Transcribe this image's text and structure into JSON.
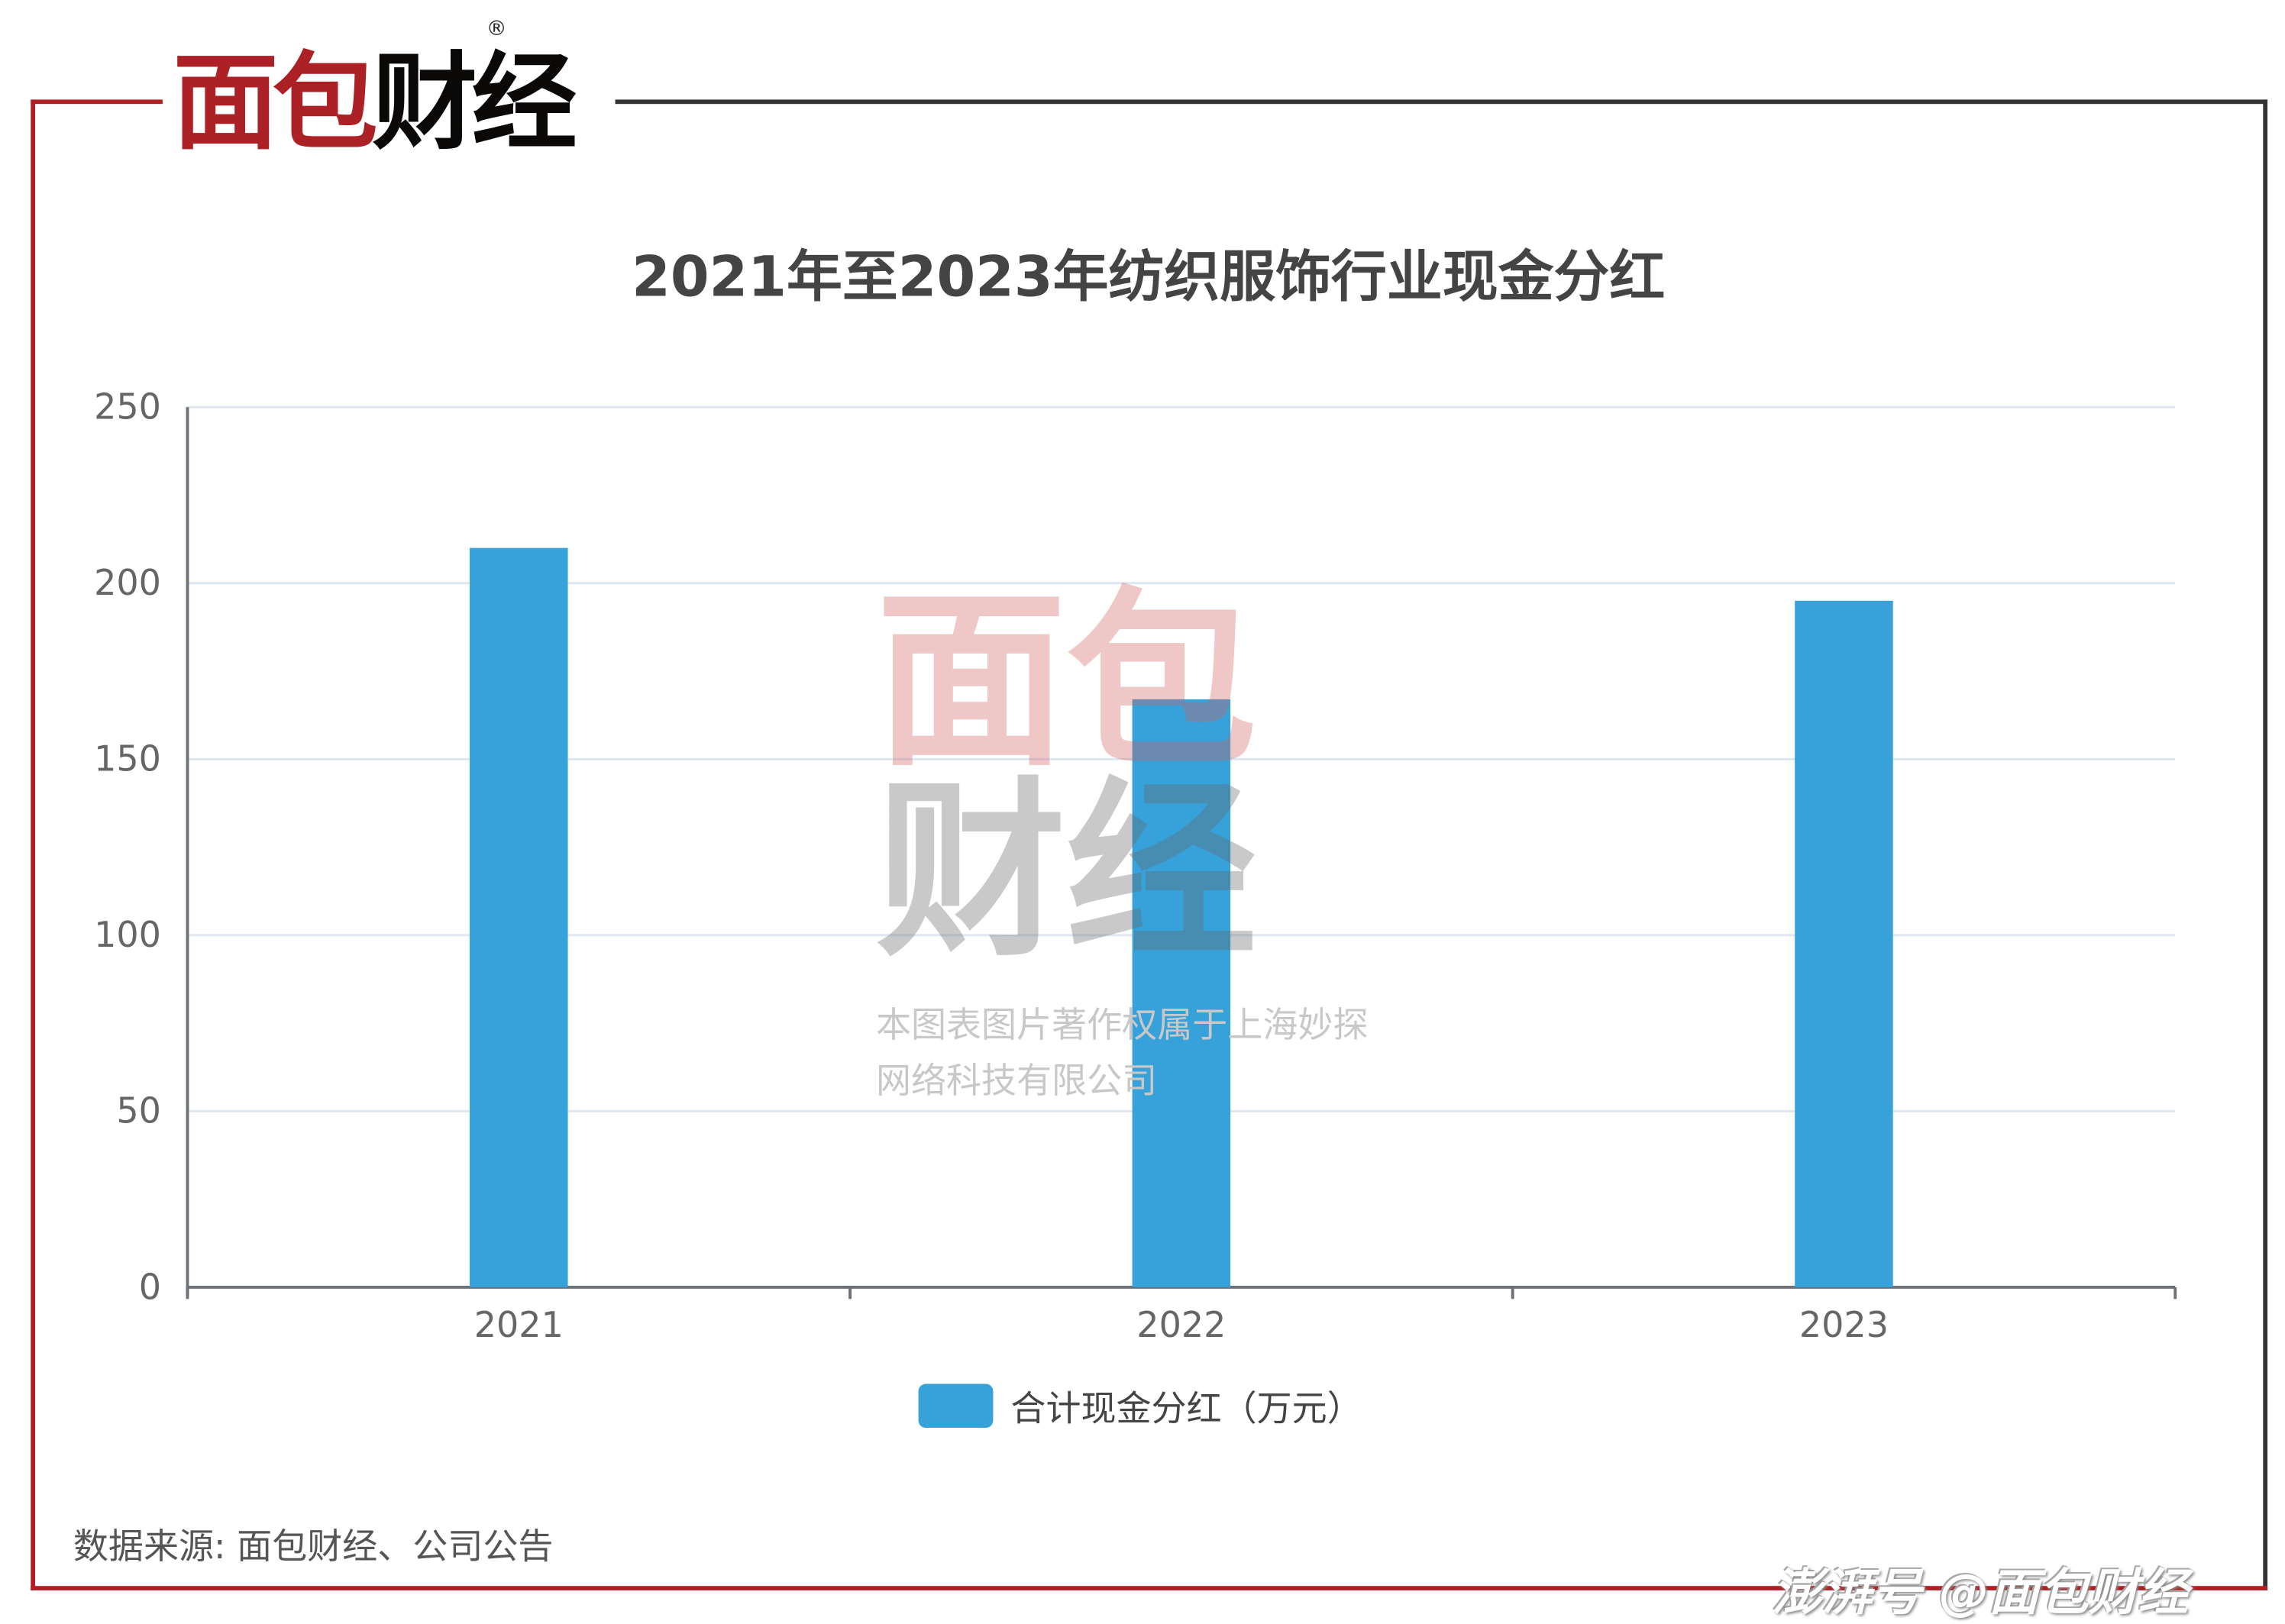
{
  "brand": {
    "logo_text_red": "面包",
    "logo_text_black": "财经",
    "registered": "®",
    "primary_color": "#ab2126",
    "frame_dark": "#333333"
  },
  "watermark": {
    "logo": "面包财经",
    "line1": "本图表图片著作权属于上海妙探",
    "line2": "网络科技有限公司"
  },
  "chart_data": {
    "type": "bar",
    "title": "2021年至2023年纺织服饰行业现金分红",
    "categories": [
      "2021",
      "2022",
      "2023"
    ],
    "series": [
      {
        "name": "合计现金分红（万元）",
        "values": [
          210,
          167,
          195
        ],
        "color": "#37a2da"
      }
    ],
    "ylim": [
      0,
      250
    ],
    "yticks": [
      0,
      50,
      100,
      150,
      200,
      250
    ],
    "grid": true,
    "legend": "bottom-center"
  },
  "source": "数据来源: 面包财经、公司公告",
  "footer": "澎湃号 @面包财经"
}
